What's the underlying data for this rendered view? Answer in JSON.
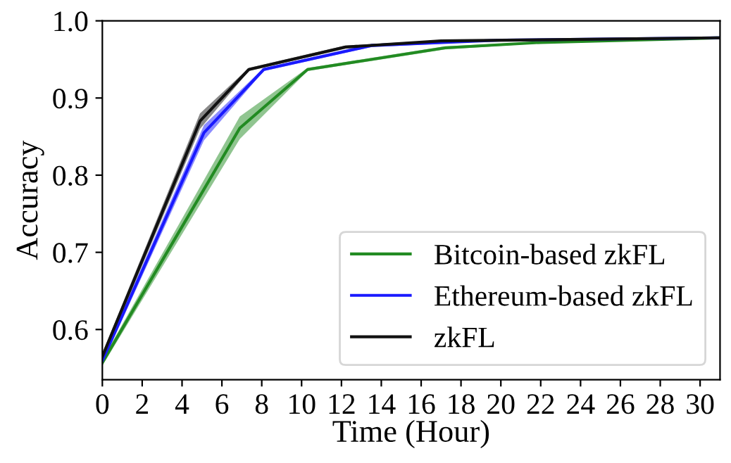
{
  "chart_data": {
    "type": "line",
    "xlabel": "Time (Hour)",
    "ylabel": "Accuracy",
    "xlim": [
      0,
      31
    ],
    "ylim": [
      0.535,
      1.0
    ],
    "xticks": [
      0,
      2,
      4,
      6,
      8,
      10,
      12,
      14,
      16,
      18,
      20,
      22,
      24,
      26,
      28,
      30
    ],
    "yticks": [
      {
        "value": 0.6,
        "label": "0.6"
      },
      {
        "value": 0.7,
        "label": "0.7"
      },
      {
        "value": 0.8,
        "label": "0.8"
      },
      {
        "value": 0.9,
        "label": "0.9"
      },
      {
        "value": 1.0,
        "label": "1.0"
      }
    ],
    "grid": false,
    "legend": "bottom right",
    "marker": "none",
    "line_style": "solid",
    "series": [
      {
        "name": "Bitcoin-based zkFL",
        "color": "#228b22",
        "x": [
          0,
          6.9,
          10.3,
          17.2,
          22,
          31
        ],
        "values": [
          0.557,
          0.861,
          0.937,
          0.965,
          0.972,
          0.978
        ],
        "lower": [
          0.553,
          0.847,
          0.935,
          0.963,
          0.971,
          0.977
        ],
        "upper": [
          0.561,
          0.876,
          0.939,
          0.967,
          0.973,
          0.979
        ]
      },
      {
        "name": "Ethereum-based zkFL",
        "color": "#1a1aff",
        "x": [
          0,
          5.1,
          8.1,
          13.5,
          20,
          31
        ],
        "values": [
          0.56,
          0.855,
          0.937,
          0.968,
          0.975,
          0.978
        ],
        "lower": [
          0.556,
          0.845,
          0.935,
          0.966,
          0.974,
          0.977
        ],
        "upper": [
          0.564,
          0.865,
          0.939,
          0.97,
          0.976,
          0.979
        ]
      },
      {
        "name": "zkFL",
        "color": "#111111",
        "x": [
          0,
          4.9,
          7.35,
          12.2,
          17,
          31
        ],
        "values": [
          0.565,
          0.87,
          0.937,
          0.966,
          0.974,
          0.978
        ],
        "lower": [
          0.561,
          0.86,
          0.935,
          0.964,
          0.973,
          0.977
        ],
        "upper": [
          0.569,
          0.88,
          0.939,
          0.968,
          0.975,
          0.979
        ]
      }
    ]
  }
}
